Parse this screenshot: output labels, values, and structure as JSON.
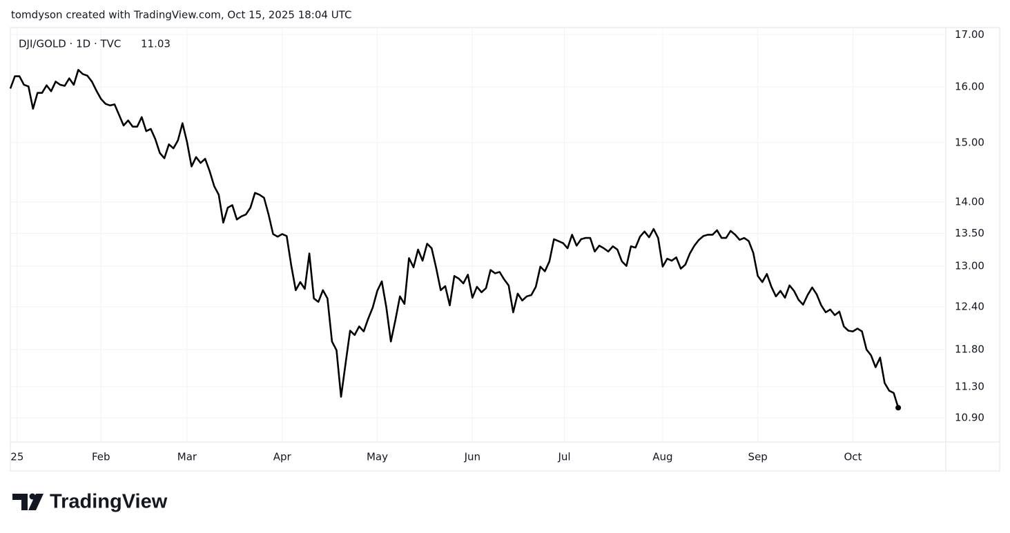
{
  "header": {
    "credit": "tomdyson created with TradingView.com, Oct 15, 2025 18:04 UTC"
  },
  "branding": {
    "logo_text": "TradingView"
  },
  "chart_data": {
    "type": "line",
    "log_scale": true,
    "grid": true,
    "series": [
      {
        "name": "DJI/GOLD · 1D · TVC",
        "color": "#000000",
        "values": [
          15.97,
          16.2,
          16.2,
          16.04,
          16.01,
          15.6,
          15.89,
          15.89,
          16.03,
          15.92,
          16.1,
          16.04,
          16.02,
          16.16,
          16.04,
          16.32,
          16.24,
          16.21,
          16.1,
          15.93,
          15.78,
          15.69,
          15.66,
          15.68,
          15.49,
          15.3,
          15.39,
          15.28,
          15.28,
          15.45,
          15.2,
          15.24,
          15.06,
          14.82,
          14.73,
          14.97,
          14.9,
          15.04,
          15.34,
          15.01,
          14.59,
          14.75,
          14.65,
          14.72,
          14.51,
          14.26,
          14.12,
          13.67,
          13.91,
          13.95,
          13.72,
          13.77,
          13.8,
          13.91,
          14.15,
          14.12,
          14.07,
          13.8,
          13.49,
          13.45,
          13.49,
          13.46,
          13.01,
          12.64,
          12.76,
          12.66,
          13.19,
          12.52,
          12.47,
          12.64,
          12.52,
          11.91,
          11.79,
          11.17,
          11.61,
          12.06,
          12.0,
          12.12,
          12.05,
          12.23,
          12.39,
          12.63,
          12.77,
          12.39,
          11.91,
          12.21,
          12.55,
          12.44,
          13.12,
          12.98,
          13.25,
          13.08,
          13.34,
          13.27,
          12.97,
          12.64,
          12.7,
          12.42,
          12.85,
          12.81,
          12.74,
          12.87,
          12.53,
          12.69,
          12.61,
          12.67,
          12.94,
          12.89,
          12.91,
          12.8,
          12.71,
          12.32,
          12.59,
          12.49,
          12.55,
          12.57,
          12.69,
          12.99,
          12.92,
          13.07,
          13.41,
          13.38,
          13.35,
          13.27,
          13.48,
          13.31,
          13.41,
          13.43,
          13.43,
          13.22,
          13.31,
          13.27,
          13.22,
          13.3,
          13.25,
          13.07,
          13.0,
          13.3,
          13.28,
          13.45,
          13.53,
          13.44,
          13.57,
          13.43,
          12.99,
          13.11,
          13.08,
          13.13,
          12.96,
          13.02,
          13.19,
          13.31,
          13.4,
          13.46,
          13.48,
          13.48,
          13.55,
          13.43,
          13.43,
          13.54,
          13.48,
          13.4,
          13.43,
          13.38,
          13.2,
          12.85,
          12.76,
          12.88,
          12.69,
          12.55,
          12.63,
          12.53,
          12.71,
          12.63,
          12.5,
          12.43,
          12.57,
          12.68,
          12.58,
          12.42,
          12.32,
          12.36,
          12.28,
          12.33,
          12.12,
          12.06,
          12.05,
          12.09,
          12.05,
          11.8,
          11.72,
          11.56,
          11.69,
          11.35,
          11.25,
          11.22,
          11.03
        ]
      }
    ],
    "xlim": [
      0,
      206.5
    ],
    "xticks": [
      {
        "value": 1.5,
        "label": "25"
      },
      {
        "value": 20,
        "label": "Feb"
      },
      {
        "value": 39,
        "label": "Mar"
      },
      {
        "value": 60,
        "label": "Apr"
      },
      {
        "value": 81,
        "label": "May"
      },
      {
        "value": 102,
        "label": "Jun"
      },
      {
        "value": 122.3,
        "label": "Jul"
      },
      {
        "value": 144,
        "label": "Aug"
      },
      {
        "value": 165,
        "label": "Sep"
      },
      {
        "value": 186,
        "label": "Oct"
      }
    ],
    "ylim": [
      10.6,
      17.14
    ],
    "yticks": [
      {
        "value": 17,
        "label": "17.00"
      },
      {
        "value": 16,
        "label": "16.00"
      },
      {
        "value": 15,
        "label": "15.00"
      },
      {
        "value": 14,
        "label": "14.00"
      },
      {
        "value": 13.5,
        "label": "13.50"
      },
      {
        "value": 13,
        "label": "13.00"
      },
      {
        "value": 12.4,
        "label": "12.40"
      },
      {
        "value": 11.8,
        "label": "11.80"
      },
      {
        "value": 11.3,
        "label": "11.30"
      },
      {
        "value": 10.9,
        "label": "10.90"
      }
    ]
  }
}
